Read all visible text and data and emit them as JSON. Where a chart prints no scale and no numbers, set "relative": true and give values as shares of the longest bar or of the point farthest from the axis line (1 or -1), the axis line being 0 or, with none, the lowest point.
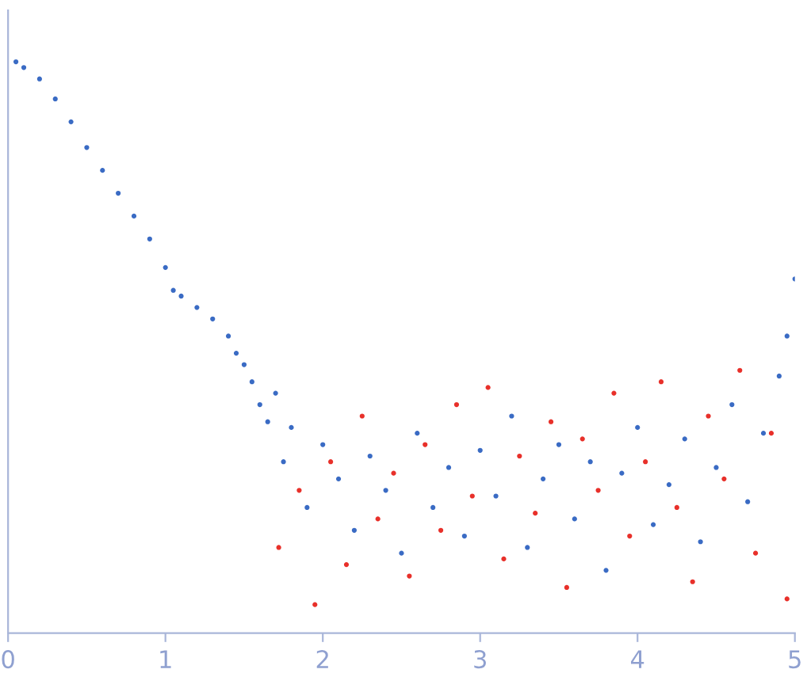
{
  "chart_data": {
    "type": "scatter",
    "relative": true,
    "xlim": [
      0,
      5
    ],
    "xticks": [
      0,
      1,
      2,
      3,
      4,
      5
    ],
    "marker": "circle",
    "grid": false,
    "legend": false,
    "series": [
      {
        "color": "#3a6bc4",
        "x": [
          0.05,
          0.1,
          0.2,
          0.3,
          0.4,
          0.5,
          0.6,
          0.7,
          0.8,
          0.9,
          1.0,
          1.05,
          1.1,
          1.2,
          1.3,
          1.4,
          1.45,
          1.5,
          1.55,
          1.6,
          1.65,
          1.7,
          1.75,
          1.8,
          1.9,
          2.0,
          2.1,
          2.2,
          2.3,
          2.4,
          2.5,
          2.6,
          2.7,
          2.8,
          2.9,
          3.0,
          3.1,
          3.2,
          3.3,
          3.4,
          3.5,
          3.6,
          3.7,
          3.8,
          3.9,
          4.0,
          4.1,
          4.2,
          4.3,
          4.4,
          4.5,
          4.6,
          4.7,
          4.8,
          4.9,
          4.95,
          5.0
        ],
        "values": [
          1.0,
          0.99,
          0.97,
          0.935,
          0.895,
          0.85,
          0.81,
          0.77,
          0.73,
          0.69,
          0.64,
          0.6,
          0.59,
          0.57,
          0.55,
          0.52,
          0.49,
          0.47,
          0.44,
          0.4,
          0.37,
          0.42,
          0.3,
          0.36,
          0.22,
          0.33,
          0.27,
          0.18,
          0.31,
          0.25,
          0.14,
          0.35,
          0.22,
          0.29,
          0.17,
          0.32,
          0.24,
          0.38,
          0.15,
          0.27,
          0.33,
          0.2,
          0.3,
          0.11,
          0.28,
          0.36,
          0.19,
          0.26,
          0.34,
          0.16,
          0.29,
          0.4,
          0.23,
          0.35,
          0.45,
          0.52,
          0.62
        ]
      },
      {
        "color": "#e8302a",
        "x": [
          1.72,
          1.85,
          1.95,
          2.05,
          2.15,
          2.25,
          2.35,
          2.45,
          2.55,
          2.65,
          2.75,
          2.85,
          2.95,
          3.05,
          3.15,
          3.25,
          3.35,
          3.45,
          3.55,
          3.65,
          3.75,
          3.85,
          3.95,
          4.05,
          4.15,
          4.25,
          4.35,
          4.45,
          4.55,
          4.65,
          4.75,
          4.85,
          4.95
        ],
        "values": [
          0.15,
          0.25,
          0.05,
          0.3,
          0.12,
          0.38,
          0.2,
          0.28,
          0.1,
          0.33,
          0.18,
          0.4,
          0.24,
          0.43,
          0.13,
          0.31,
          0.21,
          0.37,
          0.08,
          0.34,
          0.25,
          0.42,
          0.17,
          0.3,
          0.44,
          0.22,
          0.09,
          0.38,
          0.27,
          0.46,
          0.14,
          0.35,
          0.06
        ]
      }
    ]
  }
}
